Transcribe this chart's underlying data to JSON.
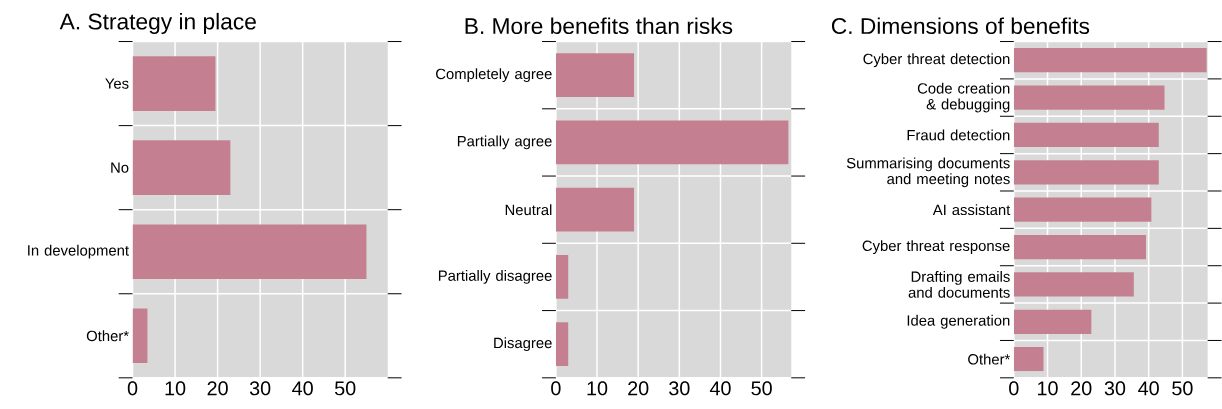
{
  "chart_data": [
    {
      "type": "bar",
      "orientation": "horizontal",
      "title": "A. Strategy in place",
      "categories": [
        "Yes",
        "No",
        "In development",
        "Other*"
      ],
      "values": [
        19.5,
        23,
        55,
        3.5
      ],
      "color": "#c48090",
      "xlim": [
        0,
        60
      ],
      "xticks": [
        0,
        10,
        20,
        30,
        40,
        50
      ],
      "grid": true
    },
    {
      "type": "bar",
      "orientation": "horizontal",
      "title": "B. More benefits than risks",
      "categories": [
        "Completely agree",
        "Partially agree",
        "Neutral",
        "Partially disagree",
        "Disagree"
      ],
      "values": [
        19,
        56.5,
        19,
        3,
        3
      ],
      "color": "#c48090",
      "xlim": [
        0,
        57.2
      ],
      "xticks": [
        0,
        10,
        20,
        30,
        40,
        50
      ],
      "grid": true
    },
    {
      "type": "bar",
      "orientation": "horizontal",
      "title": "C. Dimensions of benefits",
      "categories": [
        "Cyber threat detection",
        "Code creation & debugging",
        "Fraud detection",
        "Summarising documents and meeting notes",
        "AI assistant",
        "Cyber threat response",
        "Drafting emails and documents",
        "Idea generation",
        "Other*"
      ],
      "values": [
        57.2,
        44.7,
        43,
        43,
        40.8,
        39.2,
        35.6,
        23,
        8.8
      ],
      "color": "#c48090",
      "xlim": [
        0,
        57.5
      ],
      "xticks": [
        0,
        10,
        20,
        30,
        40,
        50
      ],
      "grid": true
    }
  ]
}
